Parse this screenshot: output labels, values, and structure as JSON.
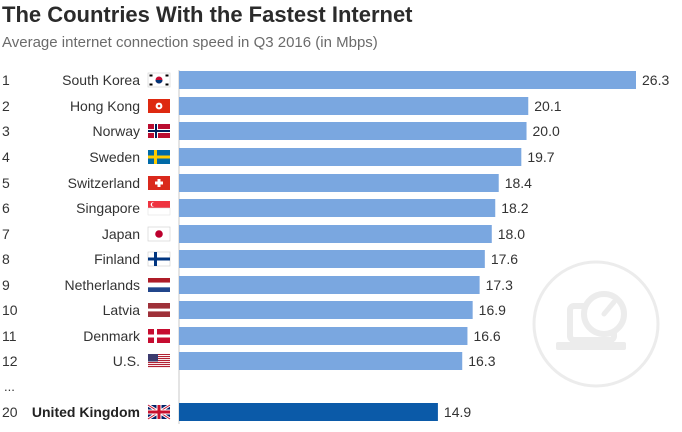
{
  "header": {
    "title": "The Countries With the Fastest Internet",
    "subtitle": "Average internet connection speed in Q3 2016 (in Mbps)"
  },
  "colors": {
    "bar": "#7aa7e0",
    "highlight_bar": "#0b5aa8",
    "axis": "#c9c9c9",
    "label": "#333333",
    "watermark": "#ececec"
  },
  "ellipsis": "...",
  "chart_data": {
    "type": "bar",
    "orientation": "horizontal",
    "title": "The Countries With the Fastest Internet",
    "subtitle": "Average internet connection speed in Q3 2016 (in Mbps)",
    "xlim": [
      0,
      26.3
    ],
    "grid": false,
    "rows": [
      {
        "rank": "1",
        "country": "South Korea",
        "flag": "flag-south-korea-icon",
        "value": 26.3,
        "label": "26.3"
      },
      {
        "rank": "2",
        "country": "Hong Kong",
        "flag": "flag-hong-kong-icon",
        "value": 20.1,
        "label": "20.1"
      },
      {
        "rank": "3",
        "country": "Norway",
        "flag": "flag-norway-icon",
        "value": 20.0,
        "label": "20.0"
      },
      {
        "rank": "4",
        "country": "Sweden",
        "flag": "flag-sweden-icon",
        "value": 19.7,
        "label": "19.7"
      },
      {
        "rank": "5",
        "country": "Switzerland",
        "flag": "flag-switzerland-icon",
        "value": 18.4,
        "label": "18.4"
      },
      {
        "rank": "6",
        "country": "Singapore",
        "flag": "flag-singapore-icon",
        "value": 18.2,
        "label": "18.2"
      },
      {
        "rank": "7",
        "country": "Japan",
        "flag": "flag-japan-icon",
        "value": 18.0,
        "label": "18.0"
      },
      {
        "rank": "8",
        "country": "Finland",
        "flag": "flag-finland-icon",
        "value": 17.6,
        "label": "17.6"
      },
      {
        "rank": "9",
        "country": "Netherlands",
        "flag": "flag-netherlands-icon",
        "value": 17.3,
        "label": "17.3"
      },
      {
        "rank": "10",
        "country": "Latvia",
        "flag": "flag-latvia-icon",
        "value": 16.9,
        "label": "16.9"
      },
      {
        "rank": "11",
        "country": "Denmark",
        "flag": "flag-denmark-icon",
        "value": 16.6,
        "label": "16.6"
      },
      {
        "rank": "12",
        "country": "U.S.",
        "flag": "flag-us-icon",
        "value": 16.3,
        "label": "16.3"
      },
      {
        "rank": "20",
        "country": "United Kingdom",
        "flag": "flag-uk-icon",
        "value": 14.9,
        "label": "14.9",
        "highlight": true
      }
    ]
  }
}
